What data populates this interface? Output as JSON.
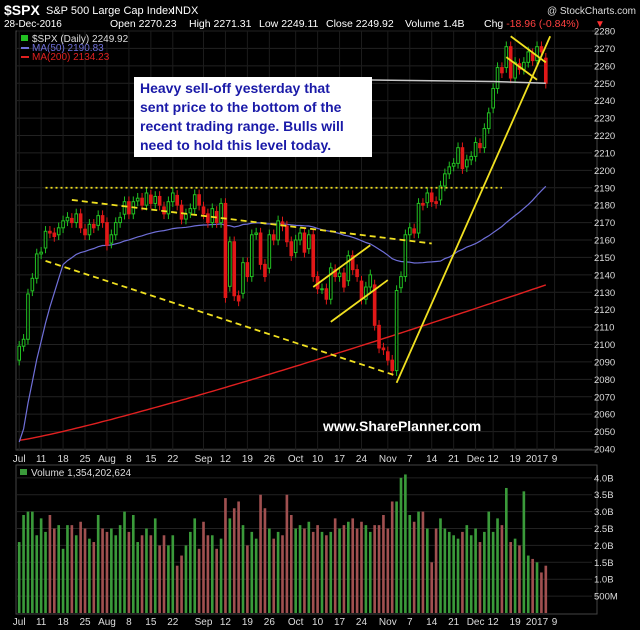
{
  "header": {
    "symbol": "$SPX",
    "name": "S&P 500 Large Cap Index",
    "exchange": "INDX",
    "credit": "@ StockCharts.com",
    "date": "28-Dec-2016",
    "open_label": "Open",
    "open": "2270.23",
    "high_label": "High",
    "high": "2271.31",
    "low_label": "Low",
    "low": "2249.11",
    "close_label": "Close",
    "close": "2249.92",
    "volume_label": "Volume",
    "volume": "1.4B",
    "chg_label": "Chg",
    "chg": "-18.96 (-0.84%)"
  },
  "legend": [
    {
      "text": "$SPX (Daily) 2249.92",
      "color": "#dddddd"
    },
    {
      "text": "MA(50) 2190.83",
      "color": "#6f6fd8"
    },
    {
      "text": "MA(200) 2134.23",
      "color": "#e02020"
    }
  ],
  "annotation": {
    "lines": [
      "Heavy sell-off yesterday that",
      "sent price to the bottom of the",
      "recent trading range. Bulls will",
      "need to hold this level today."
    ]
  },
  "watermark": "www.SharePlanner.com",
  "volume_legend": "Volume 1,354,202,624",
  "colors": {
    "up": "#22c022",
    "down": "#e01818",
    "ma50": "#6f6fd8",
    "ma200": "#e02020",
    "trend": "#f0e020",
    "vol_up": "#3a9a3a",
    "vol_down": "#a05050"
  },
  "chart_data": [
    {
      "type": "candlestick",
      "title": "$SPX (Daily)",
      "ylim": [
        2040,
        2280
      ],
      "y_ticks": [
        2040,
        2050,
        2060,
        2070,
        2080,
        2090,
        2100,
        2110,
        2120,
        2130,
        2140,
        2150,
        2160,
        2170,
        2180,
        2190,
        2200,
        2210,
        2220,
        2230,
        2240,
        2250,
        2260,
        2270,
        2280
      ],
      "x_tick_labels": [
        "Jul",
        "11",
        "18",
        "25",
        "Aug",
        "8",
        "15",
        "22",
        "Sep",
        "12",
        "19",
        "26",
        "Oct",
        "10",
        "17",
        "24",
        "Nov",
        "7",
        "14",
        "21",
        "Dec",
        "12",
        "19",
        "2017",
        "9"
      ],
      "closes": [
        2099,
        2103,
        2129,
        2138,
        2152,
        2153,
        2165,
        2164,
        2162,
        2167,
        2171,
        2173,
        2170,
        2175,
        2167,
        2163,
        2169,
        2167,
        2174,
        2170,
        2157,
        2163,
        2170,
        2173,
        2182,
        2175,
        2182,
        2184,
        2180,
        2187,
        2181,
        2185,
        2180,
        2175,
        2182,
        2187,
        2180,
        2172,
        2175,
        2178,
        2186,
        2180,
        2175,
        2170,
        2178,
        2170,
        2181,
        2127,
        2159,
        2128,
        2125,
        2147,
        2139,
        2163,
        2164,
        2146,
        2139,
        2163,
        2160,
        2171,
        2168,
        2159,
        2151,
        2160,
        2164,
        2153,
        2163,
        2139,
        2132,
        2132,
        2126,
        2144,
        2139,
        2141,
        2133,
        2151,
        2143,
        2139,
        2126,
        2133,
        2140,
        2111,
        2098,
        2097,
        2091,
        2085,
        2131,
        2139,
        2163,
        2167,
        2164,
        2181,
        2180,
        2187,
        2182,
        2181,
        2191,
        2198,
        2202,
        2204,
        2213,
        2201,
        2206,
        2208,
        2216,
        2213,
        2224,
        2233,
        2247,
        2259,
        2256,
        2271,
        2253,
        2262,
        2258,
        2262,
        2268,
        2263,
        2271,
        2268,
        2250
      ],
      "ma50_last": 2190.83,
      "ma200_last": 2134.23,
      "annotations": [
        "Heavy sell-off yesterday that sent price to the bottom of the recent trading range. Bulls will need to hold this level today."
      ]
    },
    {
      "type": "bar",
      "title": "Volume",
      "y_tick_labels": [
        "500M",
        "1.0B",
        "1.5B",
        "2.0B",
        "2.5B",
        "3.0B",
        "3.5B",
        "4.0B"
      ],
      "x_tick_labels": [
        "Jul",
        "11",
        "18",
        "25",
        "Aug",
        "8",
        "15",
        "22",
        "Sep",
        "12",
        "19",
        "26",
        "Oct",
        "10",
        "17",
        "24",
        "Nov",
        "7",
        "14",
        "21",
        "Dec",
        "12",
        "19",
        "2017",
        "9"
      ],
      "values_billions": [
        2.1,
        2.9,
        3.0,
        3.0,
        2.3,
        2.8,
        2.4,
        2.9,
        2.5,
        2.6,
        1.9,
        2.6,
        2.6,
        2.3,
        2.7,
        2.5,
        2.2,
        2.1,
        2.9,
        2.5,
        2.4,
        2.5,
        2.3,
        2.6,
        3.0,
        2.4,
        2.9,
        2.1,
        2.3,
        2.5,
        2.3,
        2.8,
        2.0,
        2.3,
        2.0,
        2.3,
        1.4,
        1.7,
        2.0,
        2.4,
        2.8,
        1.9,
        2.7,
        2.3,
        2.3,
        1.9,
        2.2,
        3.4,
        2.8,
        3.1,
        3.3,
        2.6,
        2.0,
        2.4,
        2.2,
        3.5,
        3.1,
        2.5,
        2.2,
        2.4,
        2.3,
        3.5,
        2.9,
        2.5,
        2.6,
        2.5,
        2.7,
        2.4,
        2.6,
        2.4,
        2.3,
        2.4,
        2.8,
        2.5,
        2.6,
        2.7,
        2.8,
        2.5,
        2.7,
        2.6,
        2.4,
        2.6,
        2.6,
        2.9,
        2.5,
        3.3,
        3.3,
        4.0,
        4.1,
        2.9,
        2.7,
        3.0,
        3.0,
        2.5,
        1.5,
        2.5,
        2.8,
        2.5,
        2.4,
        2.3,
        2.2,
        2.4,
        2.6,
        2.3,
        2.5,
        2.1,
        2.4,
        3.0,
        2.4,
        2.8,
        2.6,
        3.7,
        2.1,
        2.2,
        2.0,
        3.6,
        1.7,
        1.6,
        1.5,
        1.2,
        1.4
      ]
    }
  ]
}
